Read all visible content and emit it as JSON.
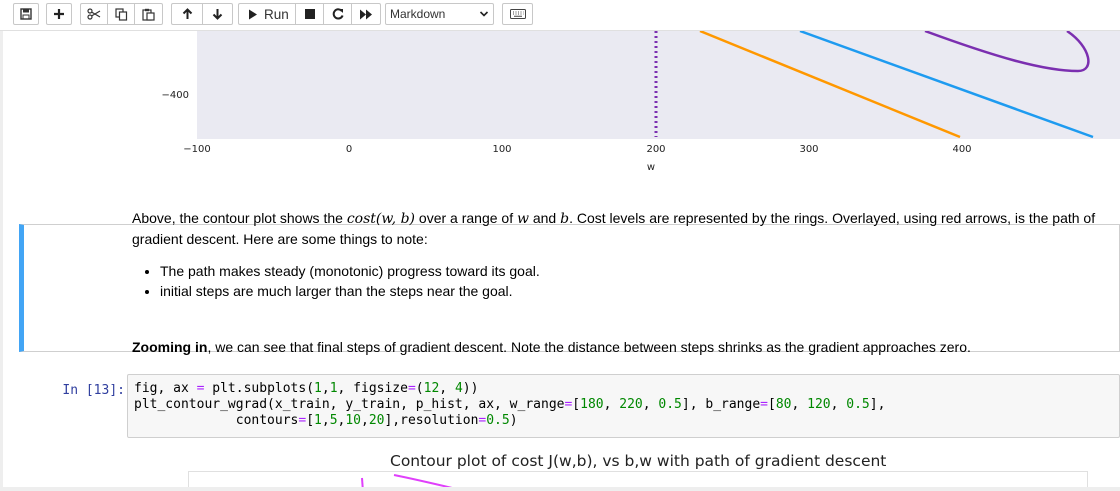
{
  "toolbar": {
    "run_label": "Run",
    "cell_type": "Markdown",
    "icons": [
      "save-icon",
      "plus-icon",
      "cut-icon",
      "copy-icon",
      "paste-icon",
      "arrow-up-icon",
      "arrow-down-icon",
      "run-icon",
      "stop-icon",
      "restart-icon",
      "fast-forward-icon",
      "keyboard-icon"
    ]
  },
  "chart_data": {
    "type": "line",
    "xlabel": "w",
    "x_ticks": [
      "−100",
      "0",
      "100",
      "200",
      "300",
      "400"
    ],
    "y_ticks": [
      "−400"
    ],
    "vline_x": 200,
    "colors": {
      "orange": "#ff9800",
      "blue": "#1e9bf0",
      "purple": "#7b2fb0",
      "vline": "#7b2fb0"
    }
  },
  "markdown_cell": {
    "para_pre": "Above, the contour plot shows the ",
    "math_cost": "cost(w, b)",
    "para_mid1": " over a range of ",
    "math_w": "w",
    "para_mid2": " and ",
    "math_b": "b",
    "para_post": ". Cost levels are represented by the rings. Overlayed, using red arrows, is the path of gradient descent. Here are some things to note:",
    "bullets": [
      "The path makes steady (monotonic) progress toward its goal.",
      "initial steps are much larger than the steps near the goal."
    ]
  },
  "zoom_cell": {
    "bold": "Zooming in",
    "rest": ", we can see that final steps of gradient descent. Note the distance between steps shrinks as the gradient approaches zero."
  },
  "code_cell": {
    "prompt": "In [13]:",
    "line1_a": "fig, ax ",
    "line1_b": "=",
    "line1_c": " plt.subplots(",
    "line1_d": "1",
    "line1_e": ",",
    "line1_f": "1",
    "line1_g": ", figsize",
    "line1_h": "=",
    "line1_i": "(",
    "line1_j": "12",
    "line1_k": ", ",
    "line1_l": "4",
    "line1_m": "))",
    "line2_a": "plt_contour_wgrad(x_train, y_train, p_hist, ax, w_range",
    "line2_b": "=",
    "line2_c": "[",
    "line2_d": "180",
    "line2_e": ", ",
    "line2_f": "220",
    "line2_g": ", ",
    "line2_h": "0.5",
    "line2_i": "], b_range",
    "line2_j": "=",
    "line2_k": "[",
    "line2_l": "80",
    "line2_m": ", ",
    "line2_n": "120",
    "line2_o": ", ",
    "line2_p": "0.5",
    "line2_q": "],",
    "line3_indent": "             contours",
    "line3_a": "=",
    "line3_b": "[",
    "line3_c": "1",
    "line3_d": ",",
    "line3_e": "5",
    "line3_f": ",",
    "line3_g": "10",
    "line3_h": ",",
    "line3_i": "20",
    "line3_j": "],resolution",
    "line3_k": "=",
    "line3_l": "0.5",
    "line3_m": ")"
  },
  "output": {
    "title": "Contour plot of cost J(w,b), vs b,w with path of gradient descent"
  }
}
